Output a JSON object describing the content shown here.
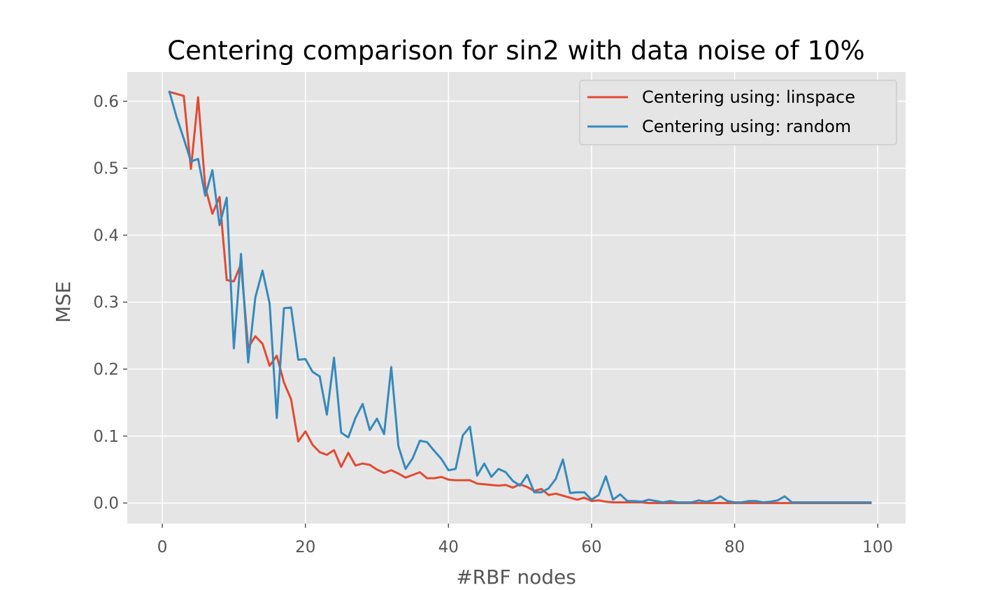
{
  "chart_data": {
    "type": "line",
    "title": "Centering comparison for sin2 with data noise of 10%",
    "xlabel": "#RBF nodes",
    "ylabel": "MSE",
    "xlim": [
      -4.9,
      103.9
    ],
    "ylim": [
      -0.0307,
      0.6437
    ],
    "xticks": [
      0,
      20,
      40,
      60,
      80,
      100
    ],
    "xtick_labels": [
      "0",
      "20",
      "40",
      "60",
      "80",
      "100"
    ],
    "yticks": [
      0.0,
      0.1,
      0.2,
      0.3,
      0.4,
      0.5,
      0.6
    ],
    "ytick_labels": [
      "0.0",
      "0.1",
      "0.2",
      "0.3",
      "0.4",
      "0.5",
      "0.6"
    ],
    "grid": true,
    "legend_position": "upper right",
    "colors": {
      "background": "#e5e5e5",
      "grid": "#ffffff",
      "linspace": "#e24a33",
      "random": "#348abd"
    },
    "series": [
      {
        "name": "Centering using: linspace",
        "color": "#e24a33",
        "x_start": 1,
        "values": [
          0.614,
          0.611,
          0.608,
          0.499,
          0.606,
          0.472,
          0.432,
          0.457,
          0.333,
          0.331,
          0.357,
          0.232,
          0.249,
          0.238,
          0.205,
          0.22,
          0.18,
          0.155,
          0.092,
          0.107,
          0.087,
          0.076,
          0.072,
          0.079,
          0.054,
          0.075,
          0.056,
          0.059,
          0.057,
          0.05,
          0.045,
          0.049,
          0.044,
          0.038,
          0.042,
          0.046,
          0.037,
          0.037,
          0.039,
          0.035,
          0.034,
          0.034,
          0.034,
          0.029,
          0.028,
          0.027,
          0.026,
          0.027,
          0.023,
          0.028,
          0.024,
          0.018,
          0.021,
          0.012,
          0.014,
          0.011,
          0.008,
          0.005,
          0.008,
          0.003,
          0.004,
          0.002,
          0.001,
          0.001,
          0.001,
          0.001,
          0.001,
          0.0,
          0.0,
          0.0,
          0.0,
          0.0,
          0.0,
          0.0,
          0.0,
          0.0,
          0.0,
          0.0,
          0.0,
          0.0,
          0.0,
          0.0,
          0.0,
          0.0,
          0.0,
          0.0,
          0.0,
          0.0,
          0.0,
          0.0,
          0.0,
          0.0,
          0.0,
          0.0,
          0.0,
          0.0,
          0.0,
          0.0,
          0.0
        ]
      },
      {
        "name": "Centering using: random",
        "color": "#348abd",
        "x_start": 1,
        "values": [
          0.614,
          0.576,
          0.544,
          0.51,
          0.514,
          0.459,
          0.497,
          0.415,
          0.456,
          0.231,
          0.372,
          0.21,
          0.307,
          0.347,
          0.298,
          0.127,
          0.291,
          0.292,
          0.214,
          0.215,
          0.196,
          0.189,
          0.132,
          0.217,
          0.105,
          0.098,
          0.127,
          0.148,
          0.109,
          0.126,
          0.103,
          0.203,
          0.085,
          0.051,
          0.067,
          0.093,
          0.091,
          0.078,
          0.066,
          0.049,
          0.051,
          0.101,
          0.114,
          0.041,
          0.059,
          0.039,
          0.051,
          0.046,
          0.033,
          0.026,
          0.042,
          0.016,
          0.016,
          0.022,
          0.036,
          0.065,
          0.015,
          0.016,
          0.016,
          0.005,
          0.012,
          0.04,
          0.005,
          0.013,
          0.003,
          0.003,
          0.002,
          0.005,
          0.003,
          0.001,
          0.003,
          0.001,
          0.001,
          0.001,
          0.004,
          0.002,
          0.004,
          0.01,
          0.003,
          0.001,
          0.001,
          0.003,
          0.003,
          0.001,
          0.002,
          0.004,
          0.01,
          0.001,
          0.001,
          0.001,
          0.001,
          0.001,
          0.001,
          0.001,
          0.001,
          0.001,
          0.001,
          0.001,
          0.001
        ]
      }
    ]
  }
}
